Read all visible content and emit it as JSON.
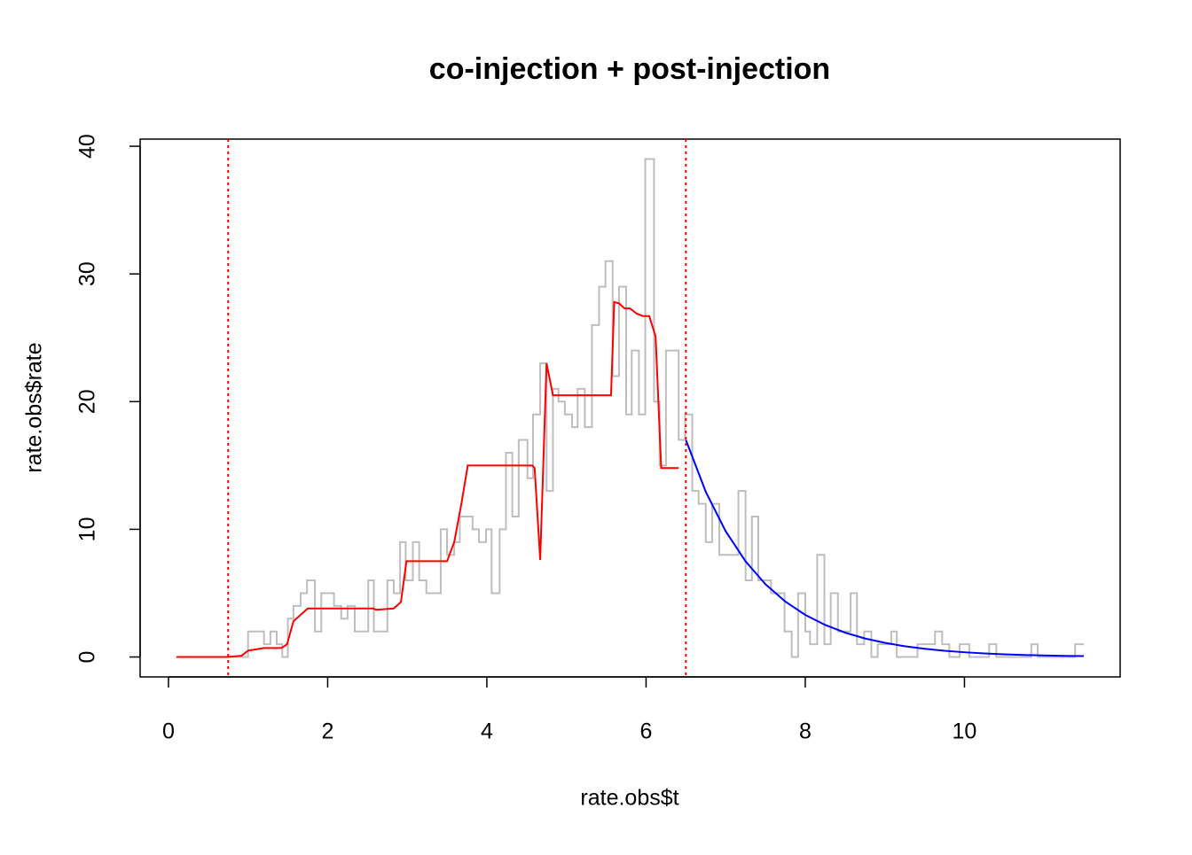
{
  "chart_data": {
    "type": "line",
    "title": "co-injection + post-injection",
    "xlabel": "rate.obs$t",
    "ylabel": "rate.obs$rate",
    "xlim": [
      -0.356,
      11.956
    ],
    "ylim": [
      -1.56,
      40.56
    ],
    "xticks": [
      0,
      2,
      4,
      6,
      8,
      10
    ],
    "yticks": [
      0,
      10,
      20,
      30,
      40
    ],
    "series": [
      {
        "color": "#bebebe",
        "style": "step",
        "x": [
          0.1,
          1.0,
          1.2,
          1.28,
          1.36,
          1.43,
          1.5,
          1.57,
          1.66,
          1.74,
          1.84,
          1.92,
          2.08,
          2.17,
          2.25,
          2.34,
          2.51,
          2.58,
          2.75,
          2.83,
          2.91,
          2.98,
          3.07,
          3.15,
          3.24,
          3.42,
          3.5,
          3.59,
          3.66,
          3.82,
          3.9,
          3.99,
          4.06,
          4.16,
          4.24,
          4.32,
          4.4,
          4.51,
          4.58,
          4.67,
          4.75,
          4.83,
          4.9,
          4.98,
          5.07,
          5.14,
          5.23,
          5.32,
          5.41,
          5.49,
          5.58,
          5.66,
          5.75,
          5.82,
          5.91,
          5.99,
          6.1,
          6.17,
          6.25,
          6.41,
          6.49,
          6.58,
          6.66,
          6.75,
          6.83,
          6.92,
          7.16,
          7.25,
          7.33,
          7.41,
          7.57,
          7.74,
          7.83,
          7.91,
          8.0,
          8.06,
          8.15,
          8.24,
          8.32,
          8.41,
          8.57,
          8.65,
          8.74,
          8.83,
          8.91,
          9.08,
          9.15,
          9.41,
          9.63,
          9.72,
          9.81,
          9.94,
          10.06,
          10.31,
          10.4,
          10.84,
          10.92,
          11.39,
          11.5
        ],
        "values": [
          0,
          2,
          1,
          2,
          1,
          0,
          3,
          4,
          5,
          6,
          2,
          5,
          4,
          3,
          4,
          2,
          6,
          2,
          6,
          5,
          9,
          6,
          9,
          6,
          5,
          10,
          8,
          9,
          11,
          10,
          9,
          10,
          5,
          10,
          16,
          11,
          17,
          14,
          19,
          23,
          13,
          21,
          20,
          19,
          18,
          21,
          18,
          26,
          29,
          31,
          22,
          29,
          19,
          24,
          19,
          39,
          20,
          15,
          24,
          17,
          19,
          13,
          12,
          9,
          12,
          8,
          13,
          6,
          11,
          6,
          5,
          2,
          0,
          5,
          2,
          1,
          8,
          1,
          5,
          2,
          5,
          1,
          2,
          0,
          1,
          2,
          0,
          1,
          2,
          1,
          0,
          1,
          0,
          1,
          0,
          1,
          0,
          1,
          1
        ]
      },
      {
        "color": "#ff0000",
        "style": "line",
        "x": [
          0.1,
          0.74,
          0.92,
          1.0,
          1.1,
          1.2,
          1.42,
          1.49,
          1.57,
          1.75,
          2.57,
          2.61,
          2.83,
          2.92,
          2.99,
          3.5,
          3.59,
          3.68,
          3.76,
          4.57,
          4.6,
          4.67,
          4.75,
          4.83,
          5.56,
          5.6,
          5.66,
          5.73,
          5.8,
          5.88,
          5.96,
          6.04,
          6.12,
          6.19,
          6.41
        ],
        "values": [
          0,
          0,
          0.1,
          0.5,
          0.6,
          0.7,
          0.7,
          1,
          2.8,
          3.8,
          3.8,
          3.7,
          3.8,
          4.3,
          7.5,
          7.5,
          9,
          12,
          15,
          15,
          14.8,
          7.6,
          23,
          20.5,
          20.5,
          27.8,
          27.7,
          27.3,
          27.3,
          26.9,
          26.7,
          26.7,
          25.1,
          14.8,
          14.8
        ]
      },
      {
        "color": "#0000ff",
        "style": "line",
        "x": [
          6.5,
          6.75,
          7.0,
          7.25,
          7.5,
          7.75,
          8.0,
          8.25,
          8.5,
          8.75,
          9.0,
          9.25,
          9.5,
          9.75,
          10.0,
          10.25,
          10.5,
          10.75,
          11.0,
          11.25,
          11.5
        ],
        "values": [
          17,
          12.94,
          9.85,
          7.49,
          5.7,
          4.34,
          3.3,
          2.51,
          1.91,
          1.45,
          1.11,
          0.84,
          0.64,
          0.49,
          0.37,
          0.28,
          0.21,
          0.16,
          0.12,
          0.09,
          0.07
        ]
      }
    ],
    "vlines": {
      "x": [
        0.75,
        6.5
      ],
      "color": "#ff0000",
      "linestyle": "dotted"
    }
  }
}
